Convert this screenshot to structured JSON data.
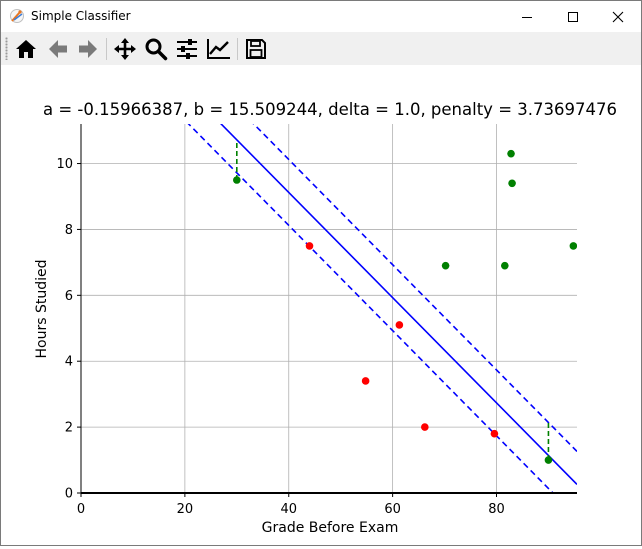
{
  "window": {
    "title": "Simple Classifier",
    "controls": {
      "minimize": "minimize-icon",
      "maximize": "maximize-icon",
      "close": "close-icon"
    }
  },
  "toolbar": {
    "buttons": [
      {
        "name": "home",
        "icon": "home-icon"
      },
      {
        "name": "back",
        "icon": "arrow-left-icon"
      },
      {
        "name": "forward",
        "icon": "arrow-right-icon"
      },
      {
        "name": "pan",
        "icon": "move-icon"
      },
      {
        "name": "zoom",
        "icon": "magnifier-icon"
      },
      {
        "name": "configure-subplots",
        "icon": "sliders-icon"
      },
      {
        "name": "edit-axis",
        "icon": "line-chart-icon"
      },
      {
        "name": "save",
        "icon": "floppy-disk-icon"
      }
    ]
  },
  "chart_data": {
    "type": "scatter",
    "title": "a = -0.15966387, b = 15.509244, delta = 1.0, penalty = 3.73697476",
    "xlabel": "Grade Before Exam",
    "ylabel": "Hours Studied",
    "xlim": [
      0,
      95.5
    ],
    "ylim": [
      0,
      11.2
    ],
    "xticks": [
      0,
      20,
      40,
      60,
      80
    ],
    "yticks": [
      0,
      2,
      4,
      6,
      8,
      10
    ],
    "grid": true,
    "colors": {
      "red_class": "#ff0000",
      "green_class": "#008000",
      "boundary": "#0000ff",
      "slack": "#008000"
    },
    "series": [
      {
        "class": "red",
        "color": "#ff0000",
        "points": [
          [
            44,
            7.5
          ],
          [
            61.3,
            5.1
          ],
          [
            54.8,
            3.4
          ],
          [
            66.2,
            2.0
          ],
          [
            79.6,
            1.8
          ]
        ]
      },
      {
        "class": "green",
        "color": "#008000",
        "points": [
          [
            30,
            9.5
          ],
          [
            70.2,
            6.9
          ],
          [
            81.6,
            6.9
          ],
          [
            82.8,
            10.3
          ],
          [
            83.0,
            9.4
          ],
          [
            94.8,
            7.5
          ],
          [
            90.0,
            1.0
          ]
        ]
      }
    ],
    "boundary": {
      "a": -0.15966387,
      "b": 15.509244,
      "delta": 1.0,
      "style": "solid"
    },
    "margins": [
      {
        "offset": 1.0,
        "style": "dashed"
      },
      {
        "offset": -1.0,
        "style": "dashed"
      }
    ],
    "slack_segments": [
      {
        "x": 30,
        "y_from": 9.5,
        "y_to": 10.7196
      },
      {
        "x": 90,
        "y_from": 1.0,
        "y_to": 2.1398
      }
    ]
  }
}
